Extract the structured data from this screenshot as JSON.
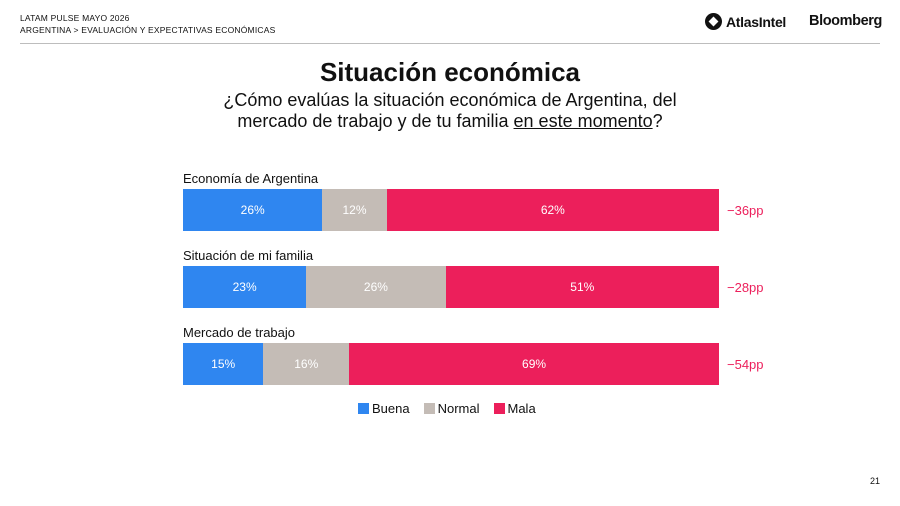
{
  "header": {
    "line1": "LATAM PULSE MAYO 2026",
    "line2": "ARGENTINA > EVALUACIÓN Y EXPECTATIVAS ECONÓMICAS",
    "logo_atlas": "AtlasIntel",
    "logo_bloomberg": "Bloomberg"
  },
  "title": "Situación económica",
  "subtitle_part1": "¿Cómo evalúas la situación económica de Argentina, del mercado de trabajo y de tu familia ",
  "subtitle_underlined": "en este momento",
  "subtitle_end": "?",
  "colors": {
    "buena": "#2f86f0",
    "normal": "#c4bcb6",
    "mala": "#ec1f5b"
  },
  "chart_data": {
    "type": "bar",
    "orientation": "horizontal",
    "stacked": true,
    "categories": [
      "Economía de Argentina",
      "Situación de mi familia",
      "Mercado de trabajo"
    ],
    "series": [
      {
        "name": "Buena",
        "values": [
          26,
          23,
          15
        ],
        "labels": [
          "26%",
          "23%",
          "15%"
        ]
      },
      {
        "name": "Normal",
        "values": [
          12,
          26,
          16
        ],
        "labels": [
          "12%",
          "26%",
          "16%"
        ]
      },
      {
        "name": "Mala",
        "values": [
          62,
          51,
          69
        ],
        "labels": [
          "62%",
          "51%",
          "69%"
        ]
      }
    ],
    "net": [
      "−36pp",
      "−28pp",
      "−54pp"
    ],
    "legend_position": "bottom"
  },
  "legend": {
    "buena": "Buena",
    "normal": "Normal",
    "mala": "Mala"
  },
  "page_number": "21"
}
